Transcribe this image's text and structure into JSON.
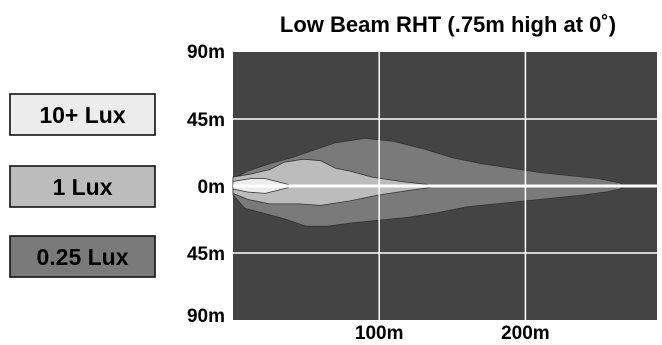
{
  "chart_data": {
    "type": "area",
    "title": "Low Beam RHT (.75m high at 0˚)",
    "xlabel": "",
    "ylabel": "",
    "x_ticks": [
      "100m",
      "200m"
    ],
    "x_tick_values": [
      100,
      200
    ],
    "y_ticks": [
      "90m",
      "45m",
      "0m",
      "45m",
      "90m"
    ],
    "y_tick_values": [
      90,
      45,
      0,
      -45,
      -90
    ],
    "xlim": [
      0,
      290
    ],
    "ylim": [
      -90,
      90
    ],
    "grid": true,
    "legend_position": "left",
    "colors": {
      "plot_background": "#444444",
      "grid": "#ffffff",
      "axis_line": "#ffffff"
    },
    "series": [
      {
        "name": "0.25 Lux",
        "color": "#7a7a7a",
        "outline": [
          [
            0,
            -6
          ],
          [
            8,
            -15
          ],
          [
            20,
            -18
          ],
          [
            35,
            -22
          ],
          [
            50,
            -27
          ],
          [
            65,
            -27
          ],
          [
            80,
            -25
          ],
          [
            100,
            -23
          ],
          [
            120,
            -21
          ],
          [
            140,
            -18
          ],
          [
            160,
            -14
          ],
          [
            180,
            -12
          ],
          [
            200,
            -10
          ],
          [
            220,
            -8
          ],
          [
            240,
            -6
          ],
          [
            255,
            -4
          ],
          [
            265,
            -2
          ],
          [
            267,
            0
          ],
          [
            265,
            2
          ],
          [
            250,
            5
          ],
          [
            230,
            7
          ],
          [
            210,
            9
          ],
          [
            190,
            12
          ],
          [
            170,
            15
          ],
          [
            150,
            19
          ],
          [
            130,
            25
          ],
          [
            110,
            30
          ],
          [
            90,
            32
          ],
          [
            70,
            29
          ],
          [
            55,
            24
          ],
          [
            40,
            19
          ],
          [
            25,
            15
          ],
          [
            10,
            10
          ],
          [
            0,
            5
          ]
        ]
      },
      {
        "name": "1 Lux",
        "color": "#bcbcbc",
        "outline": [
          [
            0,
            -5
          ],
          [
            10,
            -9
          ],
          [
            25,
            -12
          ],
          [
            45,
            -12
          ],
          [
            60,
            -13
          ],
          [
            80,
            -10
          ],
          [
            100,
            -6
          ],
          [
            120,
            -3
          ],
          [
            135,
            -1
          ],
          [
            133,
            1
          ],
          [
            115,
            3
          ],
          [
            95,
            6
          ],
          [
            80,
            10
          ],
          [
            70,
            12
          ],
          [
            60,
            17
          ],
          [
            48,
            18
          ],
          [
            35,
            16
          ],
          [
            25,
            11
          ],
          [
            12,
            8
          ],
          [
            0,
            6
          ]
        ]
      },
      {
        "name": "10+ Lux",
        "color": "#ececec",
        "outline": [
          [
            0,
            -2
          ],
          [
            10,
            -4
          ],
          [
            22,
            -5
          ],
          [
            30,
            -3
          ],
          [
            38,
            -1
          ],
          [
            38,
            1
          ],
          [
            30,
            3
          ],
          [
            22,
            5
          ],
          [
            12,
            5
          ],
          [
            0,
            3
          ]
        ]
      }
    ]
  }
}
